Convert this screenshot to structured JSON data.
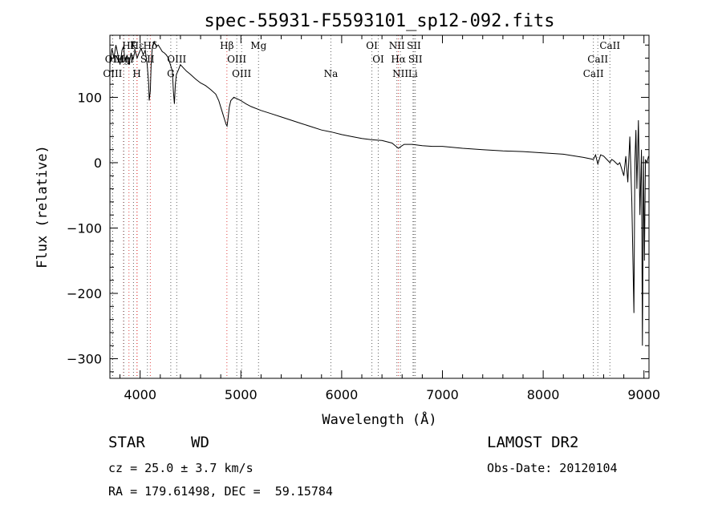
{
  "chart_data": {
    "type": "line",
    "title": "spec-55931-F5593101_sp12-092.fits",
    "xlabel": "Wavelength (Å)",
    "ylabel": "Flux (relative)",
    "xlim": [
      3700,
      9050
    ],
    "ylim": [
      -330,
      195
    ],
    "x_ticks": [
      4000,
      5000,
      6000,
      7000,
      8000,
      9000
    ],
    "y_ticks": [
      100,
      0,
      -100,
      -200,
      -300
    ],
    "grid": false,
    "series": [
      {
        "color": "#000000",
        "x": [
          3700,
          3720,
          3740,
          3760,
          3780,
          3800,
          3820,
          3835,
          3850,
          3870,
          3889,
          3910,
          3930,
          3950,
          3970,
          3990,
          4010,
          4030,
          4050,
          4070,
          4085,
          4090,
          4101,
          4110,
          4120,
          4140,
          4160,
          4180,
          4200,
          4220,
          4240,
          4260,
          4280,
          4300,
          4320,
          4330,
          4340,
          4350,
          4360,
          4380,
          4400,
          4430,
          4460,
          4500,
          4550,
          4600,
          4650,
          4700,
          4750,
          4780,
          4800,
          4820,
          4840,
          4855,
          4862,
          4870,
          4885,
          4900,
          4930,
          4960,
          5000,
          5050,
          5100,
          5200,
          5300,
          5400,
          5500,
          5600,
          5700,
          5800,
          5900,
          6000,
          6100,
          6200,
          6300,
          6400,
          6500,
          6540,
          6563,
          6590,
          6620,
          6700,
          6800,
          6900,
          7000,
          7200,
          7400,
          7600,
          7800,
          8000,
          8200,
          8400,
          8498,
          8520,
          8542,
          8570,
          8600,
          8662,
          8680,
          8700,
          8720,
          8740,
          8760,
          8780,
          8800,
          8820,
          8840,
          8860,
          8880,
          8900,
          8910,
          8920,
          8930,
          8945,
          8960,
          8975,
          8985,
          8995,
          9005,
          9015,
          9030,
          9045
        ],
        "y": [
          150,
          175,
          160,
          180,
          165,
          150,
          172,
          178,
          155,
          165,
          150,
          168,
          158,
          172,
          160,
          168,
          175,
          165,
          172,
          150,
          120,
          95,
          110,
          155,
          175,
          185,
          178,
          180,
          175,
          170,
          168,
          165,
          160,
          150,
          140,
          110,
          90,
          120,
          135,
          142,
          150,
          145,
          140,
          135,
          128,
          122,
          118,
          112,
          105,
          95,
          85,
          75,
          65,
          58,
          56,
          65,
          85,
          95,
          100,
          98,
          95,
          90,
          86,
          80,
          75,
          70,
          65,
          60,
          55,
          50,
          47,
          43,
          40,
          37,
          35,
          34,
          30,
          25,
          22,
          25,
          28,
          28,
          26,
          25,
          25,
          22,
          20,
          18,
          17,
          15,
          13,
          8,
          5,
          12,
          -2,
          12,
          10,
          0,
          5,
          3,
          0,
          -3,
          0,
          -10,
          -20,
          10,
          -30,
          40,
          -60,
          -230,
          0,
          50,
          -40,
          65,
          -80,
          20,
          -280,
          10,
          -150,
          5,
          0,
          10
        ]
      }
    ],
    "spectral_lines": [
      {
        "label": "Hζ",
        "x": 3889,
        "row": 0
      },
      {
        "label": "K",
        "x": 3934,
        "row": 0
      },
      {
        "label": "Hε",
        "x": 3970,
        "row": 0
      },
      {
        "label": "Hδ",
        "x": 4101,
        "row": 0
      },
      {
        "label": "Hβ",
        "x": 4861,
        "row": 0
      },
      {
        "label": "Mg",
        "x": 5175,
        "row": 0
      },
      {
        "label": "OI",
        "x": 6300,
        "row": 0
      },
      {
        "label": "NII",
        "x": 6548,
        "row": 0
      },
      {
        "label": "SII",
        "x": 6717,
        "row": 0
      },
      {
        "label": "CaII",
        "x": 8662,
        "row": 0
      },
      {
        "label": "OII",
        "x": 3727,
        "row": 1
      },
      {
        "label": "Hη",
        "x": 3835,
        "row": 1
      },
      {
        "label": "MgI",
        "x": 3838,
        "row": 1
      },
      {
        "label": "SII",
        "x": 4072,
        "row": 1
      },
      {
        "label": "OIII",
        "x": 4363,
        "row": 1
      },
      {
        "label": "OIII",
        "x": 4959,
        "row": 1
      },
      {
        "label": "OI",
        "x": 6363,
        "row": 1
      },
      {
        "label": "Hα",
        "x": 6563,
        "row": 1
      },
      {
        "label": "SII",
        "x": 6731,
        "row": 1
      },
      {
        "label": "CaII",
        "x": 8542,
        "row": 1
      },
      {
        "label": "OIII",
        "x": 3727,
        "row": 2
      },
      {
        "label": "H",
        "x": 3968,
        "row": 2
      },
      {
        "label": "G",
        "x": 4304,
        "row": 2
      },
      {
        "label": "OIII",
        "x": 5007,
        "row": 2
      },
      {
        "label": "Na",
        "x": 5893,
        "row": 2
      },
      {
        "label": "NII",
        "x": 6583,
        "row": 2
      },
      {
        "label": "Li",
        "x": 6708,
        "row": 2
      },
      {
        "label": "CaII",
        "x": 8498,
        "row": 2
      }
    ],
    "line_colors": {
      "hydrogen": "#e04040",
      "other": "#606060"
    }
  },
  "info": {
    "class_label": "STAR",
    "subclass_label": "WD",
    "cz_text": "cz = 25.0 ± 3.7 km/s",
    "radec_text": "RA = 179.61498, DEC =  59.15784",
    "survey_text": "LAMOST DR2",
    "obsdate_text": "Obs-Date: 20120104"
  }
}
